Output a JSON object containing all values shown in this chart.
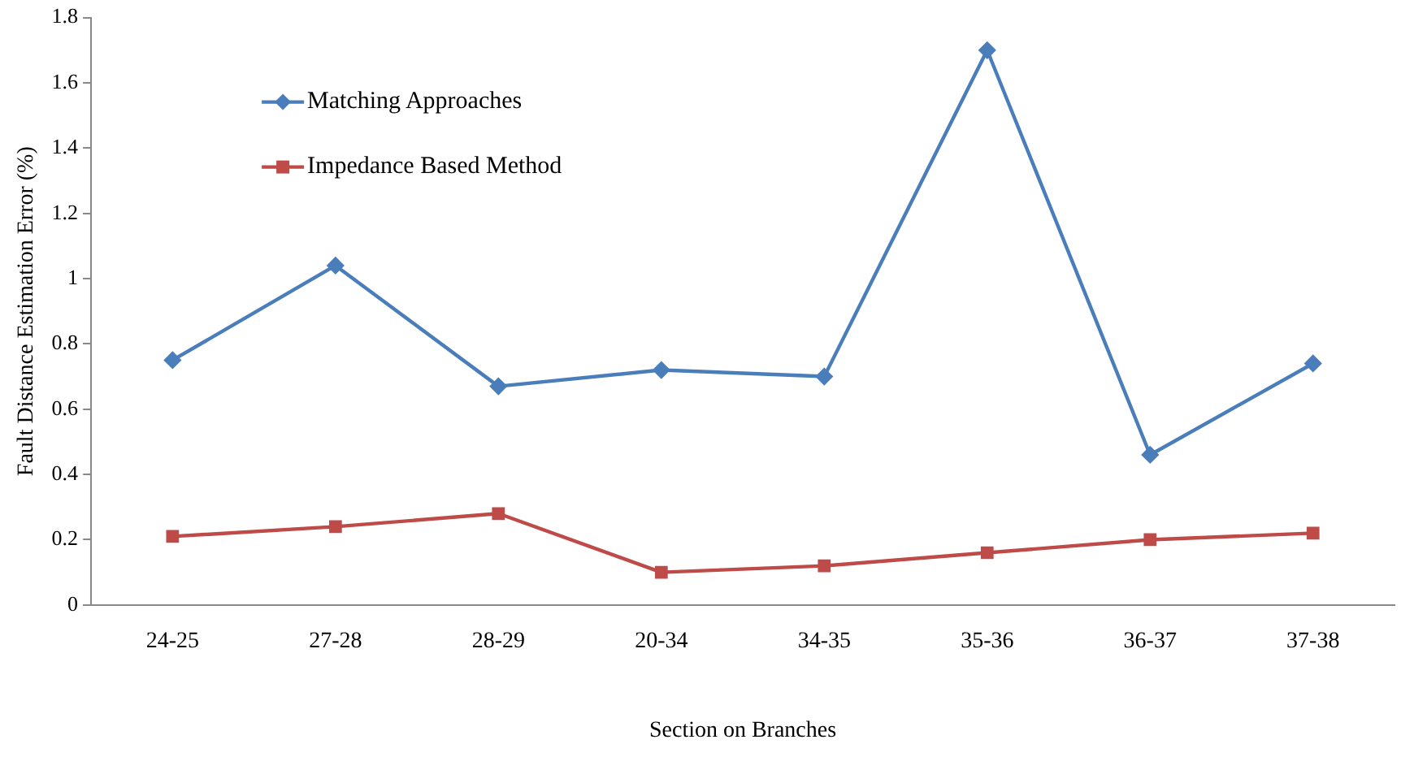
{
  "chart_data": {
    "type": "line",
    "xlabel": "Section on Branches",
    "ylabel": "Fault Distance Estimation Error (%)",
    "categories": [
      "24-25",
      "27-28",
      "28-29",
      "20-34",
      "34-35",
      "35-36",
      "36-37",
      "37-38"
    ],
    "series": [
      {
        "name": "Matching Approaches",
        "color": "#4a7ebb",
        "marker": "diamond",
        "values": [
          0.75,
          1.04,
          0.67,
          0.72,
          0.7,
          1.7,
          0.46,
          0.74
        ]
      },
      {
        "name": "Impedance Based Method",
        "color": "#be4b48",
        "marker": "square",
        "values": [
          0.21,
          0.24,
          0.28,
          0.1,
          0.12,
          0.16,
          0.2,
          0.22
        ]
      }
    ],
    "ylim": [
      0,
      1.8
    ],
    "yticks": [
      0,
      0.2,
      0.4,
      0.6,
      0.8,
      1,
      1.2,
      1.4,
      1.6,
      1.8
    ],
    "grid": false,
    "legend": "top left"
  }
}
